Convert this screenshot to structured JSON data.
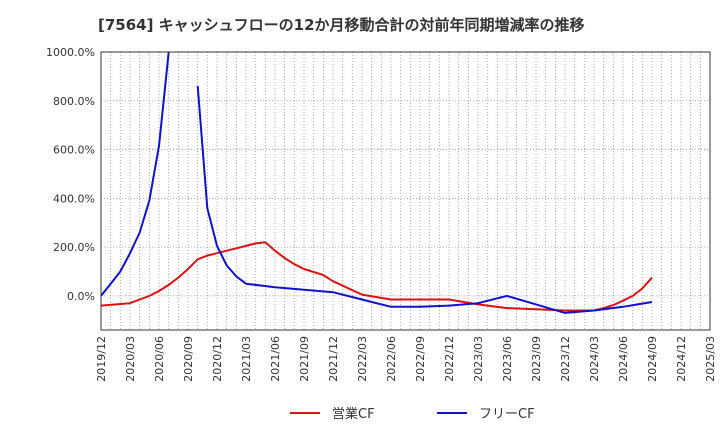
{
  "chart_data": {
    "type": "line",
    "title": "[7564]  キャッシュフローの12か月移動合計の対前年同期増減率の推移",
    "xlabel": "",
    "ylabel": "",
    "ylim": [
      -140,
      1000
    ],
    "yticks": [
      0,
      200,
      400,
      600,
      800,
      1000
    ],
    "ytick_labels": [
      "0.0%",
      "200.0%",
      "400.0%",
      "600.0%",
      "800.0%",
      "1000.0%"
    ],
    "x_start": "2019-12",
    "x_end": "2025-03",
    "xtick_labels": [
      "2019/12",
      "2020/03",
      "2020/06",
      "2020/09",
      "2020/12",
      "2021/03",
      "2021/06",
      "2021/09",
      "2021/12",
      "2022/03",
      "2022/06",
      "2022/09",
      "2022/12",
      "2023/03",
      "2023/06",
      "2023/09",
      "2023/12",
      "2024/03",
      "2024/06",
      "2024/09",
      "2024/12",
      "2025/03"
    ],
    "grid": true,
    "legend_position": "bottom-center",
    "series": [
      {
        "name": "営業CF",
        "color": "#dd1111",
        "points": [
          [
            "2019-12",
            -40
          ],
          [
            "2020-03",
            -30
          ],
          [
            "2020-04",
            -15
          ],
          [
            "2020-05",
            0
          ],
          [
            "2020-06",
            20
          ],
          [
            "2020-07",
            45
          ],
          [
            "2020-08",
            75
          ],
          [
            "2020-09",
            110
          ],
          [
            "2020-10",
            150
          ],
          [
            "2020-11",
            165
          ],
          [
            "2020-12",
            175
          ],
          [
            "2021-01",
            185
          ],
          [
            "2021-02",
            195
          ],
          [
            "2021-03",
            205
          ],
          [
            "2021-04",
            215
          ],
          [
            "2021-05",
            220
          ],
          [
            "2021-06",
            185
          ],
          [
            "2021-07",
            155
          ],
          [
            "2021-08",
            130
          ],
          [
            "2021-09",
            110
          ],
          [
            "2021-10",
            98
          ],
          [
            "2021-11",
            85
          ],
          [
            "2021-12",
            60
          ],
          [
            "2022-03",
            5
          ],
          [
            "2022-06",
            -15
          ],
          [
            "2022-09",
            -15
          ],
          [
            "2022-12",
            -15
          ],
          [
            "2023-03",
            -35
          ],
          [
            "2023-06",
            -50
          ],
          [
            "2023-09",
            -55
          ],
          [
            "2023-12",
            -60
          ],
          [
            "2024-03",
            -60
          ],
          [
            "2024-04",
            -50
          ],
          [
            "2024-05",
            -38
          ],
          [
            "2024-06",
            -20
          ],
          [
            "2024-07",
            0
          ],
          [
            "2024-08",
            30
          ],
          [
            "2024-09",
            75
          ]
        ]
      },
      {
        "name": "フリーCF",
        "color": "#1111cc",
        "segments": [
          [
            [
              "2019-12",
              0
            ],
            [
              "2020-01",
              50
            ],
            [
              "2020-02",
              100
            ],
            [
              "2020-03",
              175
            ],
            [
              "2020-04",
              260
            ],
            [
              "2020-05",
              390
            ],
            [
              "2020-06",
              615
            ],
            [
              "2020-07",
              1000
            ]
          ],
          [
            [
              "2020-10",
              860
            ],
            [
              "2020-11",
              360
            ],
            [
              "2020-12",
              205
            ],
            [
              "2021-01",
              125
            ],
            [
              "2021-02",
              80
            ],
            [
              "2021-03",
              50
            ],
            [
              "2021-06",
              35
            ],
            [
              "2021-09",
              25
            ],
            [
              "2021-12",
              15
            ],
            [
              "2022-03",
              -15
            ],
            [
              "2022-06",
              -45
            ],
            [
              "2022-09",
              -45
            ],
            [
              "2022-12",
              -40
            ],
            [
              "2023-03",
              -30
            ],
            [
              "2023-06",
              0
            ],
            [
              "2023-09",
              -35
            ],
            [
              "2023-12",
              -70
            ],
            [
              "2024-03",
              -60
            ],
            [
              "2024-06",
              -45
            ],
            [
              "2024-09",
              -25
            ]
          ]
        ]
      }
    ]
  }
}
